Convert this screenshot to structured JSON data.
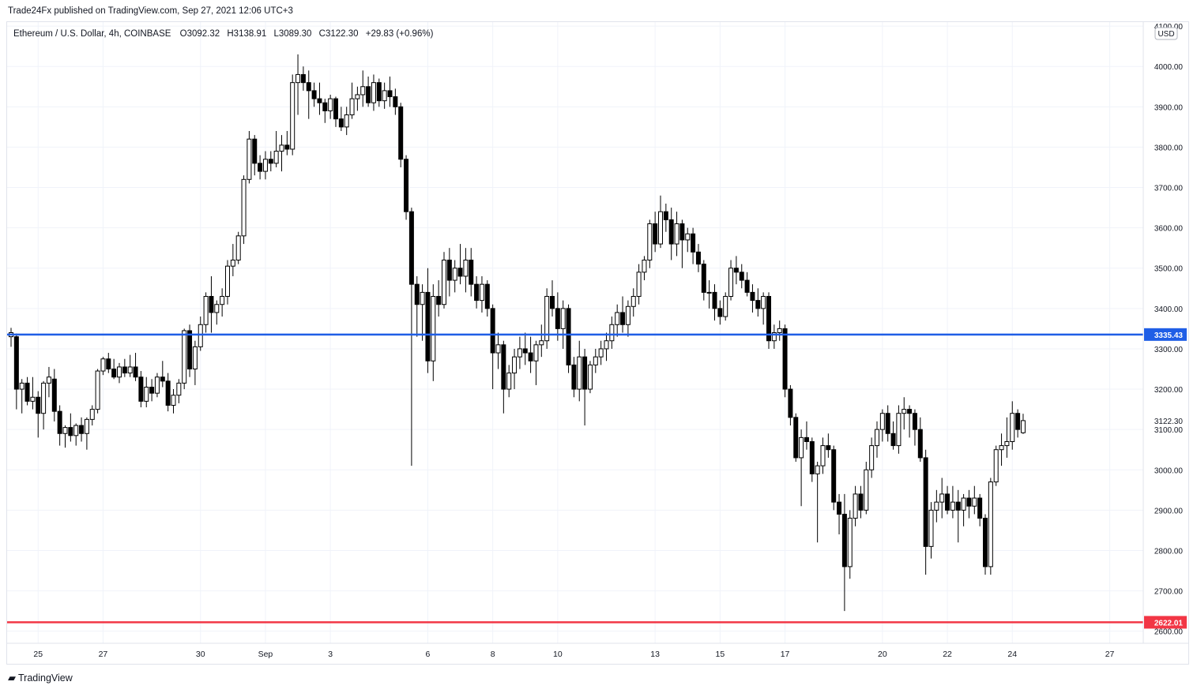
{
  "publisher_line": "Trade24Fx published on TradingView.com, Sep 27, 2021 12:06 UTC+3",
  "footer_brand": "TradingView",
  "colors": {
    "up_body": "#ffffff",
    "down_body": "#000000",
    "wick": "#000000",
    "grid": "#f0f3fa",
    "support_line": "#1f5ee6",
    "low_line": "#f23645",
    "axis_text": "#131722"
  },
  "chart_data": {
    "type": "candlestick",
    "symbol_line": "Ethereum / U.S. Dollar, 4h, COINBASE",
    "ohlc_readout": {
      "open_label": "O",
      "open": "3092.32",
      "high_label": "H",
      "high": "3138.91",
      "low_label": "L",
      "low": "3089.30",
      "close_label": "C",
      "close": "3122.30",
      "change": "+29.83 (+0.96%)"
    },
    "currency": "USD",
    "ylim": [
      2570,
      4110
    ],
    "y_ticks": [
      "2600.00",
      "2700.00",
      "2800.00",
      "2900.00",
      "3000.00",
      "3100.00",
      "3200.00",
      "3300.00",
      "3400.00",
      "3500.00",
      "3600.00",
      "3700.00",
      "3800.00",
      "3900.00",
      "4000.00",
      "4100.00"
    ],
    "x_ticks": [
      {
        "label": "25",
        "time": "2021-08-25"
      },
      {
        "label": "27",
        "time": "2021-08-27"
      },
      {
        "label": "30",
        "time": "2021-08-30"
      },
      {
        "label": "Sep",
        "time": "2021-09-01"
      },
      {
        "label": "3",
        "time": "2021-09-03"
      },
      {
        "label": "6",
        "time": "2021-09-06"
      },
      {
        "label": "8",
        "time": "2021-09-08"
      },
      {
        "label": "10",
        "time": "2021-09-10"
      },
      {
        "label": "13",
        "time": "2021-09-13"
      },
      {
        "label": "15",
        "time": "2021-09-15"
      },
      {
        "label": "17",
        "time": "2021-09-17"
      },
      {
        "label": "20",
        "time": "2021-09-20"
      },
      {
        "label": "22",
        "time": "2021-09-22"
      },
      {
        "label": "24",
        "time": "2021-09-24"
      },
      {
        "label": "27",
        "time": "2021-09-27"
      }
    ],
    "horizontal_lines": [
      {
        "price": 3335.43,
        "label": "3335.43",
        "color": "#1f5ee6"
      },
      {
        "price": 2622.01,
        "label": "2622.01",
        "color": "#f23645"
      }
    ],
    "last_price_label": "3122.30",
    "last_price": 3122.3,
    "grid": true,
    "candles": [
      {
        "o": 3330,
        "h": 3352,
        "l": 3305,
        "c": 3340
      },
      {
        "o": 3330,
        "h": 3338,
        "l": 3150,
        "c": 3200
      },
      {
        "o": 3200,
        "h": 3225,
        "l": 3140,
        "c": 3215
      },
      {
        "o": 3215,
        "h": 3230,
        "l": 3160,
        "c": 3170
      },
      {
        "o": 3170,
        "h": 3230,
        "l": 3150,
        "c": 3180
      },
      {
        "o": 3180,
        "h": 3195,
        "l": 3080,
        "c": 3140
      },
      {
        "o": 3140,
        "h": 3220,
        "l": 3100,
        "c": 3215
      },
      {
        "o": 3215,
        "h": 3255,
        "l": 3180,
        "c": 3230
      },
      {
        "o": 3225,
        "h": 3250,
        "l": 3120,
        "c": 3145
      },
      {
        "o": 3145,
        "h": 3160,
        "l": 3060,
        "c": 3090
      },
      {
        "o": 3090,
        "h": 3110,
        "l": 3055,
        "c": 3105
      },
      {
        "o": 3105,
        "h": 3140,
        "l": 3070,
        "c": 3085
      },
      {
        "o": 3085,
        "h": 3115,
        "l": 3060,
        "c": 3110
      },
      {
        "o": 3110,
        "h": 3130,
        "l": 3070,
        "c": 3090
      },
      {
        "o": 3090,
        "h": 3130,
        "l": 3050,
        "c": 3125
      },
      {
        "o": 3125,
        "h": 3160,
        "l": 3110,
        "c": 3150
      },
      {
        "o": 3150,
        "h": 3250,
        "l": 3140,
        "c": 3245
      },
      {
        "o": 3245,
        "h": 3280,
        "l": 3235,
        "c": 3275
      },
      {
        "o": 3275,
        "h": 3290,
        "l": 3240,
        "c": 3250
      },
      {
        "o": 3250,
        "h": 3275,
        "l": 3225,
        "c": 3230
      },
      {
        "o": 3230,
        "h": 3265,
        "l": 3215,
        "c": 3255
      },
      {
        "o": 3255,
        "h": 3275,
        "l": 3230,
        "c": 3240
      },
      {
        "o": 3240,
        "h": 3285,
        "l": 3230,
        "c": 3255
      },
      {
        "o": 3255,
        "h": 3290,
        "l": 3220,
        "c": 3230
      },
      {
        "o": 3230,
        "h": 3245,
        "l": 3155,
        "c": 3170
      },
      {
        "o": 3170,
        "h": 3230,
        "l": 3155,
        "c": 3205
      },
      {
        "o": 3205,
        "h": 3225,
        "l": 3170,
        "c": 3190
      },
      {
        "o": 3190,
        "h": 3240,
        "l": 3180,
        "c": 3230
      },
      {
        "o": 3230,
        "h": 3270,
        "l": 3205,
        "c": 3220
      },
      {
        "o": 3220,
        "h": 3240,
        "l": 3145,
        "c": 3160
      },
      {
        "o": 3160,
        "h": 3200,
        "l": 3140,
        "c": 3185
      },
      {
        "o": 3185,
        "h": 3225,
        "l": 3165,
        "c": 3215
      },
      {
        "o": 3215,
        "h": 3350,
        "l": 3200,
        "c": 3345
      },
      {
        "o": 3345,
        "h": 3360,
        "l": 3230,
        "c": 3250
      },
      {
        "o": 3250,
        "h": 3320,
        "l": 3210,
        "c": 3305
      },
      {
        "o": 3305,
        "h": 3380,
        "l": 3295,
        "c": 3360
      },
      {
        "o": 3360,
        "h": 3440,
        "l": 3340,
        "c": 3430
      },
      {
        "o": 3430,
        "h": 3480,
        "l": 3340,
        "c": 3390
      },
      {
        "o": 3390,
        "h": 3420,
        "l": 3360,
        "c": 3410
      },
      {
        "o": 3410,
        "h": 3450,
        "l": 3380,
        "c": 3430
      },
      {
        "o": 3430,
        "h": 3520,
        "l": 3410,
        "c": 3505
      },
      {
        "o": 3505,
        "h": 3560,
        "l": 3480,
        "c": 3520
      },
      {
        "o": 3520,
        "h": 3590,
        "l": 3510,
        "c": 3580
      },
      {
        "o": 3580,
        "h": 3730,
        "l": 3560,
        "c": 3720
      },
      {
        "o": 3720,
        "h": 3840,
        "l": 3710,
        "c": 3820
      },
      {
        "o": 3820,
        "h": 3830,
        "l": 3730,
        "c": 3760
      },
      {
        "o": 3760,
        "h": 3780,
        "l": 3720,
        "c": 3740
      },
      {
        "o": 3740,
        "h": 3790,
        "l": 3720,
        "c": 3770
      },
      {
        "o": 3770,
        "h": 3790,
        "l": 3740,
        "c": 3760
      },
      {
        "o": 3760,
        "h": 3840,
        "l": 3750,
        "c": 3790
      },
      {
        "o": 3790,
        "h": 3830,
        "l": 3740,
        "c": 3805
      },
      {
        "o": 3805,
        "h": 3840,
        "l": 3780,
        "c": 3795
      },
      {
        "o": 3795,
        "h": 3980,
        "l": 3780,
        "c": 3960
      },
      {
        "o": 3960,
        "h": 4030,
        "l": 3880,
        "c": 3980
      },
      {
        "o": 3980,
        "h": 4000,
        "l": 3940,
        "c": 3960
      },
      {
        "o": 3960,
        "h": 3990,
        "l": 3870,
        "c": 3940
      },
      {
        "o": 3940,
        "h": 3960,
        "l": 3900,
        "c": 3920
      },
      {
        "o": 3920,
        "h": 3960,
        "l": 3880,
        "c": 3910
      },
      {
        "o": 3910,
        "h": 3920,
        "l": 3860,
        "c": 3890
      },
      {
        "o": 3890,
        "h": 3930,
        "l": 3870,
        "c": 3920
      },
      {
        "o": 3920,
        "h": 3925,
        "l": 3850,
        "c": 3870
      },
      {
        "o": 3870,
        "h": 3900,
        "l": 3840,
        "c": 3850
      },
      {
        "o": 3850,
        "h": 3900,
        "l": 3830,
        "c": 3880
      },
      {
        "o": 3880,
        "h": 3960,
        "l": 3870,
        "c": 3920
      },
      {
        "o": 3920,
        "h": 3950,
        "l": 3890,
        "c": 3930
      },
      {
        "o": 3930,
        "h": 3990,
        "l": 3900,
        "c": 3950
      },
      {
        "o": 3950,
        "h": 3975,
        "l": 3900,
        "c": 3910
      },
      {
        "o": 3910,
        "h": 3980,
        "l": 3890,
        "c": 3960
      },
      {
        "o": 3960,
        "h": 3970,
        "l": 3900,
        "c": 3915
      },
      {
        "o": 3915,
        "h": 3960,
        "l": 3895,
        "c": 3940
      },
      {
        "o": 3940,
        "h": 3975,
        "l": 3900,
        "c": 3925
      },
      {
        "o": 3925,
        "h": 3945,
        "l": 3880,
        "c": 3900
      },
      {
        "o": 3900,
        "h": 3910,
        "l": 3750,
        "c": 3770
      },
      {
        "o": 3770,
        "h": 3780,
        "l": 3620,
        "c": 3640
      },
      {
        "o": 3640,
        "h": 3650,
        "l": 3010,
        "c": 3460
      },
      {
        "o": 3460,
        "h": 3480,
        "l": 3330,
        "c": 3410
      },
      {
        "o": 3410,
        "h": 3460,
        "l": 3320,
        "c": 3440
      },
      {
        "o": 3440,
        "h": 3500,
        "l": 3240,
        "c": 3270
      },
      {
        "o": 3270,
        "h": 3460,
        "l": 3220,
        "c": 3430
      },
      {
        "o": 3430,
        "h": 3470,
        "l": 3380,
        "c": 3410
      },
      {
        "o": 3410,
        "h": 3540,
        "l": 3400,
        "c": 3520
      },
      {
        "o": 3520,
        "h": 3550,
        "l": 3430,
        "c": 3470
      },
      {
        "o": 3470,
        "h": 3520,
        "l": 3440,
        "c": 3500
      },
      {
        "o": 3500,
        "h": 3560,
        "l": 3460,
        "c": 3480
      },
      {
        "o": 3480,
        "h": 3550,
        "l": 3440,
        "c": 3520
      },
      {
        "o": 3520,
        "h": 3550,
        "l": 3430,
        "c": 3460
      },
      {
        "o": 3460,
        "h": 3480,
        "l": 3400,
        "c": 3420
      },
      {
        "o": 3420,
        "h": 3480,
        "l": 3390,
        "c": 3460
      },
      {
        "o": 3460,
        "h": 3470,
        "l": 3380,
        "c": 3400
      },
      {
        "o": 3400,
        "h": 3410,
        "l": 3200,
        "c": 3290
      },
      {
        "o": 3290,
        "h": 3340,
        "l": 3250,
        "c": 3310
      },
      {
        "o": 3310,
        "h": 3320,
        "l": 3140,
        "c": 3200
      },
      {
        "o": 3200,
        "h": 3260,
        "l": 3180,
        "c": 3240
      },
      {
        "o": 3240,
        "h": 3300,
        "l": 3200,
        "c": 3280
      },
      {
        "o": 3280,
        "h": 3330,
        "l": 3250,
        "c": 3300
      },
      {
        "o": 3300,
        "h": 3340,
        "l": 3260,
        "c": 3290
      },
      {
        "o": 3290,
        "h": 3330,
        "l": 3240,
        "c": 3270
      },
      {
        "o": 3270,
        "h": 3320,
        "l": 3210,
        "c": 3310
      },
      {
        "o": 3310,
        "h": 3360,
        "l": 3280,
        "c": 3320
      },
      {
        "o": 3320,
        "h": 3450,
        "l": 3300,
        "c": 3430
      },
      {
        "o": 3430,
        "h": 3470,
        "l": 3380,
        "c": 3400
      },
      {
        "o": 3400,
        "h": 3440,
        "l": 3320,
        "c": 3350
      },
      {
        "o": 3350,
        "h": 3420,
        "l": 3300,
        "c": 3400
      },
      {
        "o": 3400,
        "h": 3410,
        "l": 3240,
        "c": 3260
      },
      {
        "o": 3260,
        "h": 3280,
        "l": 3180,
        "c": 3200
      },
      {
        "o": 3200,
        "h": 3320,
        "l": 3170,
        "c": 3280
      },
      {
        "o": 3280,
        "h": 3300,
        "l": 3110,
        "c": 3200
      },
      {
        "o": 3200,
        "h": 3270,
        "l": 3190,
        "c": 3260
      },
      {
        "o": 3260,
        "h": 3300,
        "l": 3240,
        "c": 3280
      },
      {
        "o": 3280,
        "h": 3320,
        "l": 3260,
        "c": 3300
      },
      {
        "o": 3300,
        "h": 3340,
        "l": 3270,
        "c": 3320
      },
      {
        "o": 3320,
        "h": 3380,
        "l": 3300,
        "c": 3360
      },
      {
        "o": 3360,
        "h": 3410,
        "l": 3330,
        "c": 3390
      },
      {
        "o": 3390,
        "h": 3430,
        "l": 3340,
        "c": 3360
      },
      {
        "o": 3360,
        "h": 3420,
        "l": 3330,
        "c": 3405
      },
      {
        "o": 3405,
        "h": 3450,
        "l": 3380,
        "c": 3430
      },
      {
        "o": 3430,
        "h": 3510,
        "l": 3410,
        "c": 3490
      },
      {
        "o": 3490,
        "h": 3530,
        "l": 3470,
        "c": 3520
      },
      {
        "o": 3520,
        "h": 3620,
        "l": 3500,
        "c": 3610
      },
      {
        "o": 3610,
        "h": 3640,
        "l": 3540,
        "c": 3560
      },
      {
        "o": 3560,
        "h": 3680,
        "l": 3550,
        "c": 3640
      },
      {
        "o": 3640,
        "h": 3660,
        "l": 3590,
        "c": 3620
      },
      {
        "o": 3620,
        "h": 3650,
        "l": 3520,
        "c": 3560
      },
      {
        "o": 3560,
        "h": 3640,
        "l": 3530,
        "c": 3610
      },
      {
        "o": 3610,
        "h": 3620,
        "l": 3500,
        "c": 3570
      },
      {
        "o": 3570,
        "h": 3600,
        "l": 3540,
        "c": 3585
      },
      {
        "o": 3585,
        "h": 3600,
        "l": 3510,
        "c": 3540
      },
      {
        "o": 3540,
        "h": 3560,
        "l": 3490,
        "c": 3510
      },
      {
        "o": 3510,
        "h": 3520,
        "l": 3420,
        "c": 3440
      },
      {
        "o": 3440,
        "h": 3470,
        "l": 3400,
        "c": 3440
      },
      {
        "o": 3440,
        "h": 3460,
        "l": 3370,
        "c": 3400
      },
      {
        "o": 3400,
        "h": 3420,
        "l": 3360,
        "c": 3380
      },
      {
        "o": 3380,
        "h": 3440,
        "l": 3370,
        "c": 3430
      },
      {
        "o": 3430,
        "h": 3520,
        "l": 3420,
        "c": 3500
      },
      {
        "o": 3500,
        "h": 3530,
        "l": 3460,
        "c": 3490
      },
      {
        "o": 3490,
        "h": 3510,
        "l": 3450,
        "c": 3470
      },
      {
        "o": 3470,
        "h": 3490,
        "l": 3430,
        "c": 3440
      },
      {
        "o": 3440,
        "h": 3460,
        "l": 3390,
        "c": 3420
      },
      {
        "o": 3420,
        "h": 3450,
        "l": 3380,
        "c": 3400
      },
      {
        "o": 3400,
        "h": 3440,
        "l": 3360,
        "c": 3430
      },
      {
        "o": 3430,
        "h": 3440,
        "l": 3300,
        "c": 3320
      },
      {
        "o": 3320,
        "h": 3360,
        "l": 3300,
        "c": 3340
      },
      {
        "o": 3340,
        "h": 3370,
        "l": 3320,
        "c": 3350
      },
      {
        "o": 3350,
        "h": 3360,
        "l": 3180,
        "c": 3200
      },
      {
        "o": 3200,
        "h": 3210,
        "l": 3110,
        "c": 3130
      },
      {
        "o": 3130,
        "h": 3140,
        "l": 3020,
        "c": 3030
      },
      {
        "o": 3030,
        "h": 3100,
        "l": 2910,
        "c": 3080
      },
      {
        "o": 3080,
        "h": 3120,
        "l": 3050,
        "c": 3070
      },
      {
        "o": 3070,
        "h": 3080,
        "l": 2970,
        "c": 2990
      },
      {
        "o": 2990,
        "h": 3020,
        "l": 2820,
        "c": 3010
      },
      {
        "o": 3010,
        "h": 3080,
        "l": 2990,
        "c": 3060
      },
      {
        "o": 3060,
        "h": 3090,
        "l": 3030,
        "c": 3050
      },
      {
        "o": 3050,
        "h": 3060,
        "l": 2900,
        "c": 2920
      },
      {
        "o": 2920,
        "h": 2940,
        "l": 2840,
        "c": 2890
      },
      {
        "o": 2890,
        "h": 2940,
        "l": 2650,
        "c": 2760
      },
      {
        "o": 2760,
        "h": 2900,
        "l": 2730,
        "c": 2880
      },
      {
        "o": 2880,
        "h": 2960,
        "l": 2860,
        "c": 2940
      },
      {
        "o": 2940,
        "h": 2960,
        "l": 2880,
        "c": 2900
      },
      {
        "o": 2900,
        "h": 3020,
        "l": 2890,
        "c": 3000
      },
      {
        "o": 3000,
        "h": 3080,
        "l": 2980,
        "c": 3060
      },
      {
        "o": 3060,
        "h": 3120,
        "l": 3030,
        "c": 3100
      },
      {
        "o": 3100,
        "h": 3150,
        "l": 3070,
        "c": 3140
      },
      {
        "o": 3140,
        "h": 3160,
        "l": 3070,
        "c": 3090
      },
      {
        "o": 3090,
        "h": 3120,
        "l": 3050,
        "c": 3060
      },
      {
        "o": 3060,
        "h": 3160,
        "l": 3040,
        "c": 3140
      },
      {
        "o": 3140,
        "h": 3180,
        "l": 3100,
        "c": 3150
      },
      {
        "o": 3150,
        "h": 3160,
        "l": 3080,
        "c": 3140
      },
      {
        "o": 3140,
        "h": 3150,
        "l": 3060,
        "c": 3100
      },
      {
        "o": 3100,
        "h": 3130,
        "l": 3020,
        "c": 3030
      },
      {
        "o": 3030,
        "h": 3050,
        "l": 2740,
        "c": 2810
      },
      {
        "o": 2810,
        "h": 2920,
        "l": 2780,
        "c": 2900
      },
      {
        "o": 2900,
        "h": 2950,
        "l": 2870,
        "c": 2920
      },
      {
        "o": 2920,
        "h": 2980,
        "l": 2880,
        "c": 2940
      },
      {
        "o": 2940,
        "h": 2960,
        "l": 2890,
        "c": 2900
      },
      {
        "o": 2900,
        "h": 2960,
        "l": 2880,
        "c": 2920
      },
      {
        "o": 2920,
        "h": 2950,
        "l": 2820,
        "c": 2900
      },
      {
        "o": 2900,
        "h": 2940,
        "l": 2860,
        "c": 2930
      },
      {
        "o": 2930,
        "h": 2950,
        "l": 2880,
        "c": 2910
      },
      {
        "o": 2910,
        "h": 2960,
        "l": 2890,
        "c": 2930
      },
      {
        "o": 2930,
        "h": 2940,
        "l": 2860,
        "c": 2880
      },
      {
        "o": 2880,
        "h": 2890,
        "l": 2740,
        "c": 2760
      },
      {
        "o": 2760,
        "h": 2980,
        "l": 2740,
        "c": 2970
      },
      {
        "o": 2970,
        "h": 3060,
        "l": 2960,
        "c": 3050
      },
      {
        "o": 3050,
        "h": 3090,
        "l": 3010,
        "c": 3060
      },
      {
        "o": 3060,
        "h": 3130,
        "l": 3030,
        "c": 3070
      },
      {
        "o": 3070,
        "h": 3170,
        "l": 3050,
        "c": 3140
      },
      {
        "o": 3140,
        "h": 3150,
        "l": 3080,
        "c": 3100
      },
      {
        "o": 3092,
        "h": 3139,
        "l": 3089,
        "c": 3122
      }
    ]
  }
}
